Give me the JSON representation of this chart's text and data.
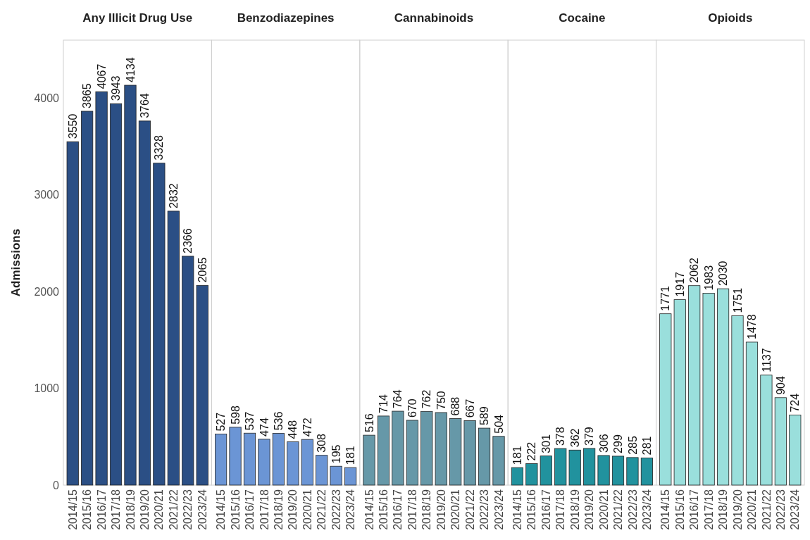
{
  "chart_data": [
    {
      "type": "bar",
      "title": "Any Illicit Drug Use",
      "ylabel": "Admissions",
      "categories": [
        "2014/15",
        "2015/16",
        "2016/17",
        "2017/18",
        "2018/19",
        "2019/20",
        "2020/21",
        "2021/22",
        "2022/23",
        "2023/24"
      ],
      "values": [
        3550,
        3865,
        4067,
        3943,
        4134,
        3764,
        3328,
        2832,
        2366,
        2065
      ],
      "color": "#2b4f85",
      "ylim": [
        0,
        4600
      ],
      "yticks": [
        0,
        1000,
        2000,
        3000,
        4000
      ],
      "data_labels": true
    },
    {
      "type": "bar",
      "title": "Benzodiazepines",
      "categories": [
        "2014/15",
        "2015/16",
        "2016/17",
        "2017/18",
        "2018/19",
        "2019/20",
        "2020/21",
        "2021/22",
        "2022/23",
        "2023/24"
      ],
      "values": [
        527,
        598,
        537,
        474,
        536,
        448,
        472,
        308,
        195,
        181
      ],
      "color": "#6b95d5",
      "ylim": [
        0,
        4600
      ],
      "tick_labels": "x",
      "data_labels": true
    },
    {
      "type": "bar",
      "title": "Cannabinoids",
      "categories": [
        "2014/15",
        "2015/16",
        "2016/17",
        "2017/18",
        "2018/19",
        "2019/20",
        "2020/21",
        "2021/22",
        "2022/23",
        "2023/24"
      ],
      "values": [
        516,
        714,
        764,
        670,
        762,
        750,
        688,
        667,
        589,
        504
      ],
      "color": "#6698a8",
      "ylim": [
        0,
        4600
      ],
      "tick_labels": "x",
      "data_labels": true
    },
    {
      "type": "bar",
      "title": "Cocaine",
      "categories": [
        "2014/15",
        "2015/16",
        "2016/17",
        "2017/18",
        "2018/19",
        "2019/20",
        "2020/21",
        "2021/22",
        "2022/23",
        "2023/24"
      ],
      "values": [
        181,
        222,
        301,
        378,
        362,
        379,
        306,
        299,
        285,
        281
      ],
      "color": "#21929e",
      "ylim": [
        0,
        4600
      ],
      "tick_labels": "x",
      "data_labels": true
    },
    {
      "type": "bar",
      "title": "Opioids",
      "categories": [
        "2014/15",
        "2015/16",
        "2016/17",
        "2017/18",
        "2018/19",
        "2019/20",
        "2020/21",
        "2021/22",
        "2022/23",
        "2023/24"
      ],
      "values": [
        1771,
        1917,
        2062,
        1983,
        2030,
        1751,
        1478,
        1137,
        904,
        724
      ],
      "color": "#9adfdc",
      "ylim": [
        0,
        4600
      ],
      "tick_labels": "x",
      "data_labels": true
    }
  ]
}
